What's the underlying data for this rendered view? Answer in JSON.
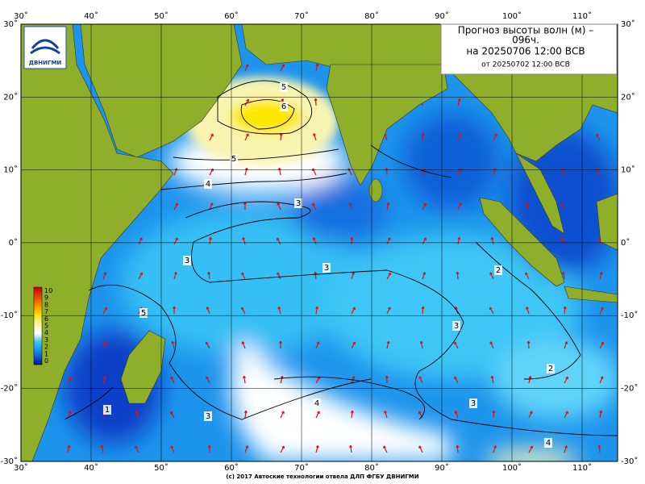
{
  "header": {
    "title_lines": [
      "Прогноз высоты волн (м) –",
      "096ч.",
      "на 20250706 12:00 ВСВ"
    ],
    "issued": "от 20250702 12:00 ВСВ"
  },
  "logo": {
    "text": "ДВНИГМИ"
  },
  "map": {
    "lon_ticks": [
      {
        "value": 30,
        "label": "30˚"
      },
      {
        "value": 40,
        "label": "40˚"
      },
      {
        "value": 50,
        "label": "50˚"
      },
      {
        "value": 60,
        "label": "60˚"
      },
      {
        "value": 70,
        "label": "70˚"
      },
      {
        "value": 80,
        "label": "80˚"
      },
      {
        "value": 90,
        "label": "90˚"
      },
      {
        "value": 100,
        "label": "100˚"
      },
      {
        "value": 110,
        "label": "110˚"
      }
    ],
    "lat_ticks": [
      {
        "value": 30,
        "label": "30˚"
      },
      {
        "value": 20,
        "label": "20˚"
      },
      {
        "value": 10,
        "label": "10˚"
      },
      {
        "value": 0,
        "label": "0˚"
      },
      {
        "value": -10,
        "label": "-10˚"
      },
      {
        "value": -20,
        "label": "-20˚"
      },
      {
        "value": -30,
        "label": "-30˚"
      }
    ],
    "contour_labels": [
      "5",
      "6",
      "5",
      "4",
      "3",
      "3",
      "3",
      "5",
      "3",
      "2",
      "2",
      "1",
      "3",
      "4",
      "3",
      "4"
    ]
  },
  "color_scale": {
    "labels": [
      "10",
      "9",
      "8",
      "7",
      "6",
      "5",
      "4",
      "3",
      "2",
      "1",
      "0"
    ]
  },
  "footer": "(c) 2017 Автоские технологии отвела ДЛП ФГБУ ДВНИГМИ"
}
